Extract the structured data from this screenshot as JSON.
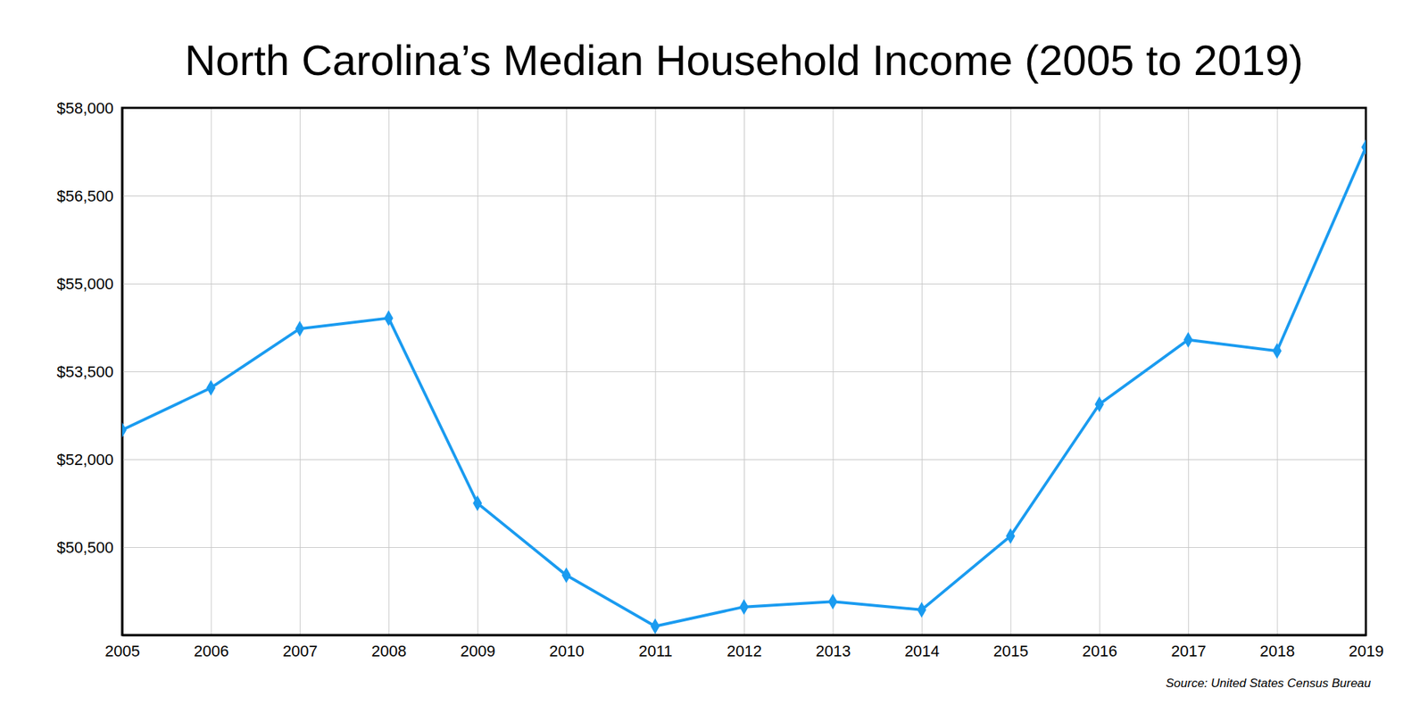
{
  "chart_data": {
    "type": "line",
    "title": "North Carolina’s Median Household Income (2005 to 2019)",
    "source": "Source: United States Census Bureau",
    "x": [
      2005,
      2006,
      2007,
      2008,
      2009,
      2010,
      2011,
      2012,
      2013,
      2014,
      2015,
      2016,
      2017,
      2018,
      2019
    ],
    "values": [
      52500,
      53220,
      54230,
      54410,
      51250,
      50020,
      49150,
      49480,
      49570,
      49430,
      50690,
      52940,
      54040,
      53850,
      57330
    ],
    "color": "#1a9bf0",
    "marker": "diamond",
    "xlim": [
      2005,
      2019
    ],
    "xticks": [
      2005,
      2006,
      2007,
      2008,
      2009,
      2010,
      2011,
      2012,
      2013,
      2014,
      2015,
      2016,
      2017,
      2018,
      2019
    ],
    "ylim": [
      49000,
      58000
    ],
    "yticks": [
      {
        "value": 50500,
        "label": "$50,500"
      },
      {
        "value": 52000,
        "label": "$52,000"
      },
      {
        "value": 53500,
        "label": "$53,500"
      },
      {
        "value": 55000,
        "label": "$55,000"
      },
      {
        "value": 56500,
        "label": "$56,500"
      },
      {
        "value": 58000,
        "label": "$58,000"
      }
    ],
    "grid": true
  }
}
